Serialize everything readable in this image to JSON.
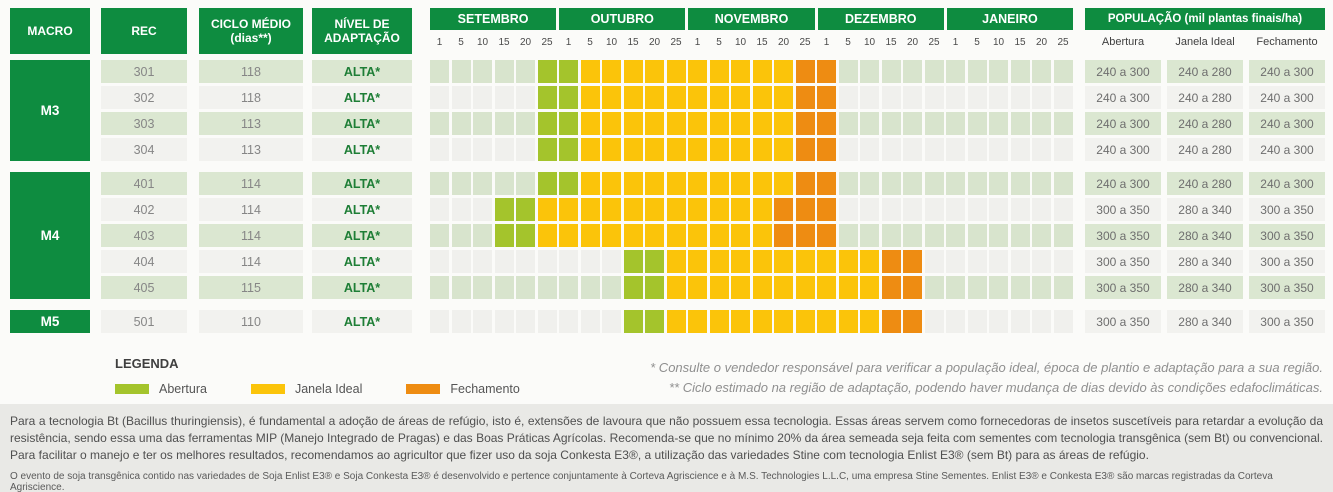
{
  "palette": {
    "header_green": "#0e8c40",
    "row_green": "#dbe7d1",
    "row_white": "#f2f2ef",
    "abertura": "#a4c42c",
    "janela_ideal": "#fbc40a",
    "fechamento": "#ee8c12",
    "adaptacao_text": "#1e7e36",
    "footer_bg": "#e9e9e6"
  },
  "header": {
    "macro": "MACRO",
    "rec": "REC",
    "ciclo_line1": "CICLO MÉDIO",
    "ciclo_line2": "(dias**)",
    "nivel_line1": "NÍVEL DE",
    "nivel_line2": "ADAPTAÇÃO",
    "months": [
      "SETEMBRO",
      "OUTUBRO",
      "NOVEMBRO",
      "DEZEMBRO",
      "JANEIRO"
    ],
    "day_ticks": [
      "1",
      "5",
      "10",
      "15",
      "20",
      "25"
    ],
    "populacao": "POPULAÇÃO (mil plantas finais/ha)",
    "pop_cols": [
      "Abertura",
      "Janela Ideal",
      "Fechamento"
    ]
  },
  "chart_data": {
    "type": "table",
    "title": "Planting window calendar per soybean variety (Gantt-style strip, Sep 1 to Jan 25 in 5-day ticks)",
    "cal_encoding": "30 chars per row, one per tick: .=none, A=Abertura, J=Janela Ideal, F=Fechamento",
    "timeline_ticks": [
      "Set 1",
      "Set 5",
      "Set 10",
      "Set 15",
      "Set 20",
      "Set 25",
      "Out 1",
      "Out 5",
      "Out 10",
      "Out 15",
      "Out 20",
      "Out 25",
      "Nov 1",
      "Nov 5",
      "Nov 10",
      "Nov 15",
      "Nov 20",
      "Nov 25",
      "Dez 1",
      "Dez 5",
      "Dez 10",
      "Dez 15",
      "Dez 20",
      "Dez 25",
      "Jan 1",
      "Jan 5",
      "Jan 10",
      "Jan 15",
      "Jan 20",
      "Jan 25"
    ],
    "rows": [
      {
        "macro": "M3",
        "rec": "301",
        "ciclo": "118",
        "nivel": "ALTA*",
        "cal": ".....AAJJJJJJJJJJFF...........",
        "abertura": "25 Set a 1 Out",
        "janela_ideal": "5 Out a 20 Nov",
        "fechamento": "25 Nov a 1 Dez",
        "pop": [
          "240 a 300",
          "240 a 280",
          "240 a 300"
        ]
      },
      {
        "macro": "M3",
        "rec": "302",
        "ciclo": "118",
        "nivel": "ALTA*",
        "cal": ".....AAJJJJJJJJJJFF...........",
        "abertura": "25 Set a 1 Out",
        "janela_ideal": "5 Out a 20 Nov",
        "fechamento": "25 Nov a 1 Dez",
        "pop": [
          "240 a 300",
          "240 a 280",
          "240 a 300"
        ]
      },
      {
        "macro": "M3",
        "rec": "303",
        "ciclo": "113",
        "nivel": "ALTA*",
        "cal": ".....AAJJJJJJJJJJFF...........",
        "abertura": "25 Set a 1 Out",
        "janela_ideal": "5 Out a 20 Nov",
        "fechamento": "25 Nov a 1 Dez",
        "pop": [
          "240 a 300",
          "240 a 280",
          "240 a 300"
        ]
      },
      {
        "macro": "M3",
        "rec": "304",
        "ciclo": "113",
        "nivel": "ALTA*",
        "cal": ".....AAJJJJJJJJJJFF...........",
        "abertura": "25 Set a 1 Out",
        "janela_ideal": "5 Out a 20 Nov",
        "fechamento": "25 Nov a 1 Dez",
        "pop": [
          "240 a 300",
          "240 a 280",
          "240 a 300"
        ]
      },
      {
        "macro": "M4",
        "rec": "401",
        "ciclo": "114",
        "nivel": "ALTA*",
        "cal": ".....AAJJJJJJJJJJFF...........",
        "abertura": "25 Set a 1 Out",
        "janela_ideal": "5 Out a 20 Nov",
        "fechamento": "25 Nov a 1 Dez",
        "pop": [
          "240 a 300",
          "240 a 280",
          "240 a 300"
        ]
      },
      {
        "macro": "M4",
        "rec": "402",
        "ciclo": "114",
        "nivel": "ALTA*",
        "cal": "...AAJJJJJJJJJJJFFF...........",
        "abertura": "15 Set a 20 Set",
        "janela_ideal": "25 Set a 15 Nov",
        "fechamento": "20 Nov a 1 Dez",
        "pop": [
          "300 a 350",
          "280 a 340",
          "300 a 350"
        ]
      },
      {
        "macro": "M4",
        "rec": "403",
        "ciclo": "114",
        "nivel": "ALTA*",
        "cal": "...AAJJJJJJJJJJJFFF...........",
        "abertura": "15 Set a 20 Set",
        "janela_ideal": "25 Set a 15 Nov",
        "fechamento": "20 Nov a 1 Dez",
        "pop": [
          "300 a 350",
          "280 a 340",
          "300 a 350"
        ]
      },
      {
        "macro": "M4",
        "rec": "404",
        "ciclo": "114",
        "nivel": "ALTA*",
        "cal": ".........AAJJJJJJJJJJFF.......",
        "abertura": "15 Out a 20 Out",
        "janela_ideal": "25 Out a 10 Dez",
        "fechamento": "15 Dez a 20 Dez",
        "pop": [
          "300 a 350",
          "280 a 340",
          "300 a 350"
        ]
      },
      {
        "macro": "M4",
        "rec": "405",
        "ciclo": "115",
        "nivel": "ALTA*",
        "cal": ".........AAJJJJJJJJJJFF.......",
        "abertura": "15 Out a 20 Out",
        "janela_ideal": "25 Out a 10 Dez",
        "fechamento": "15 Dez a 20 Dez",
        "pop": [
          "300 a 350",
          "280 a 340",
          "300 a 350"
        ]
      },
      {
        "macro": "M5",
        "rec": "501",
        "ciclo": "110",
        "nivel": "ALTA*",
        "cal": ".........AAJJJJJJJJJJFF.......",
        "abertura": "15 Out a 20 Out",
        "janela_ideal": "25 Out a 10 Dez",
        "fechamento": "15 Dez a 20 Dez",
        "pop": [
          "300 a 350",
          "280 a 340",
          "300 a 350"
        ]
      }
    ]
  },
  "legend": {
    "title": "LEGENDA",
    "items": [
      {
        "label": "Abertura",
        "color": "#a4c42c"
      },
      {
        "label": "Janela Ideal",
        "color": "#fbc40a"
      },
      {
        "label": "Fechamento",
        "color": "#ee8c12"
      }
    ]
  },
  "footnotes": [
    "* Consulte o vendedor responsável para verificar a população ideal, época de plantio e adaptação para a sua região.",
    "** Ciclo estimado na região de adaptação, podendo haver mudança de dias devido às condições edafoclimáticas."
  ],
  "disclaimer": {
    "paragraph": "Para a tecnologia Bt (Bacillus thuringiensis), é fundamental a adoção de áreas de refúgio, isto é, extensões de lavoura que não possuem essa tecnologia. Essas áreas servem como fornecedoras de insetos suscetíveis para retardar a evolução da resistência, sendo essa uma das ferramentas MIP (Manejo Integrado de Pragas) e das Boas Práticas Agrícolas. Recomenda-se que no mínimo 20% da área semeada seja feita com sementes com tecnologia transgênica (sem Bt) ou convencional. Para facilitar o manejo e ter os melhores resultados, recomendamos ao agricultor que fizer uso da soja Conkesta E3®, a utilização das variedades Stine com tecnologia Enlist E3® (sem Bt) para as áreas de refúgio.",
    "small": "O evento de soja transgênica contido nas variedades de Soja Enlist E3® e Soja Conkesta E3® é desenvolvido e pertence conjuntamente à Corteva Agriscience e à M.S. Technologies L.L.C, uma empresa Stine Sementes. Enlist E3® e Conkesta E3® são marcas registradas da Corteva Agriscience."
  }
}
